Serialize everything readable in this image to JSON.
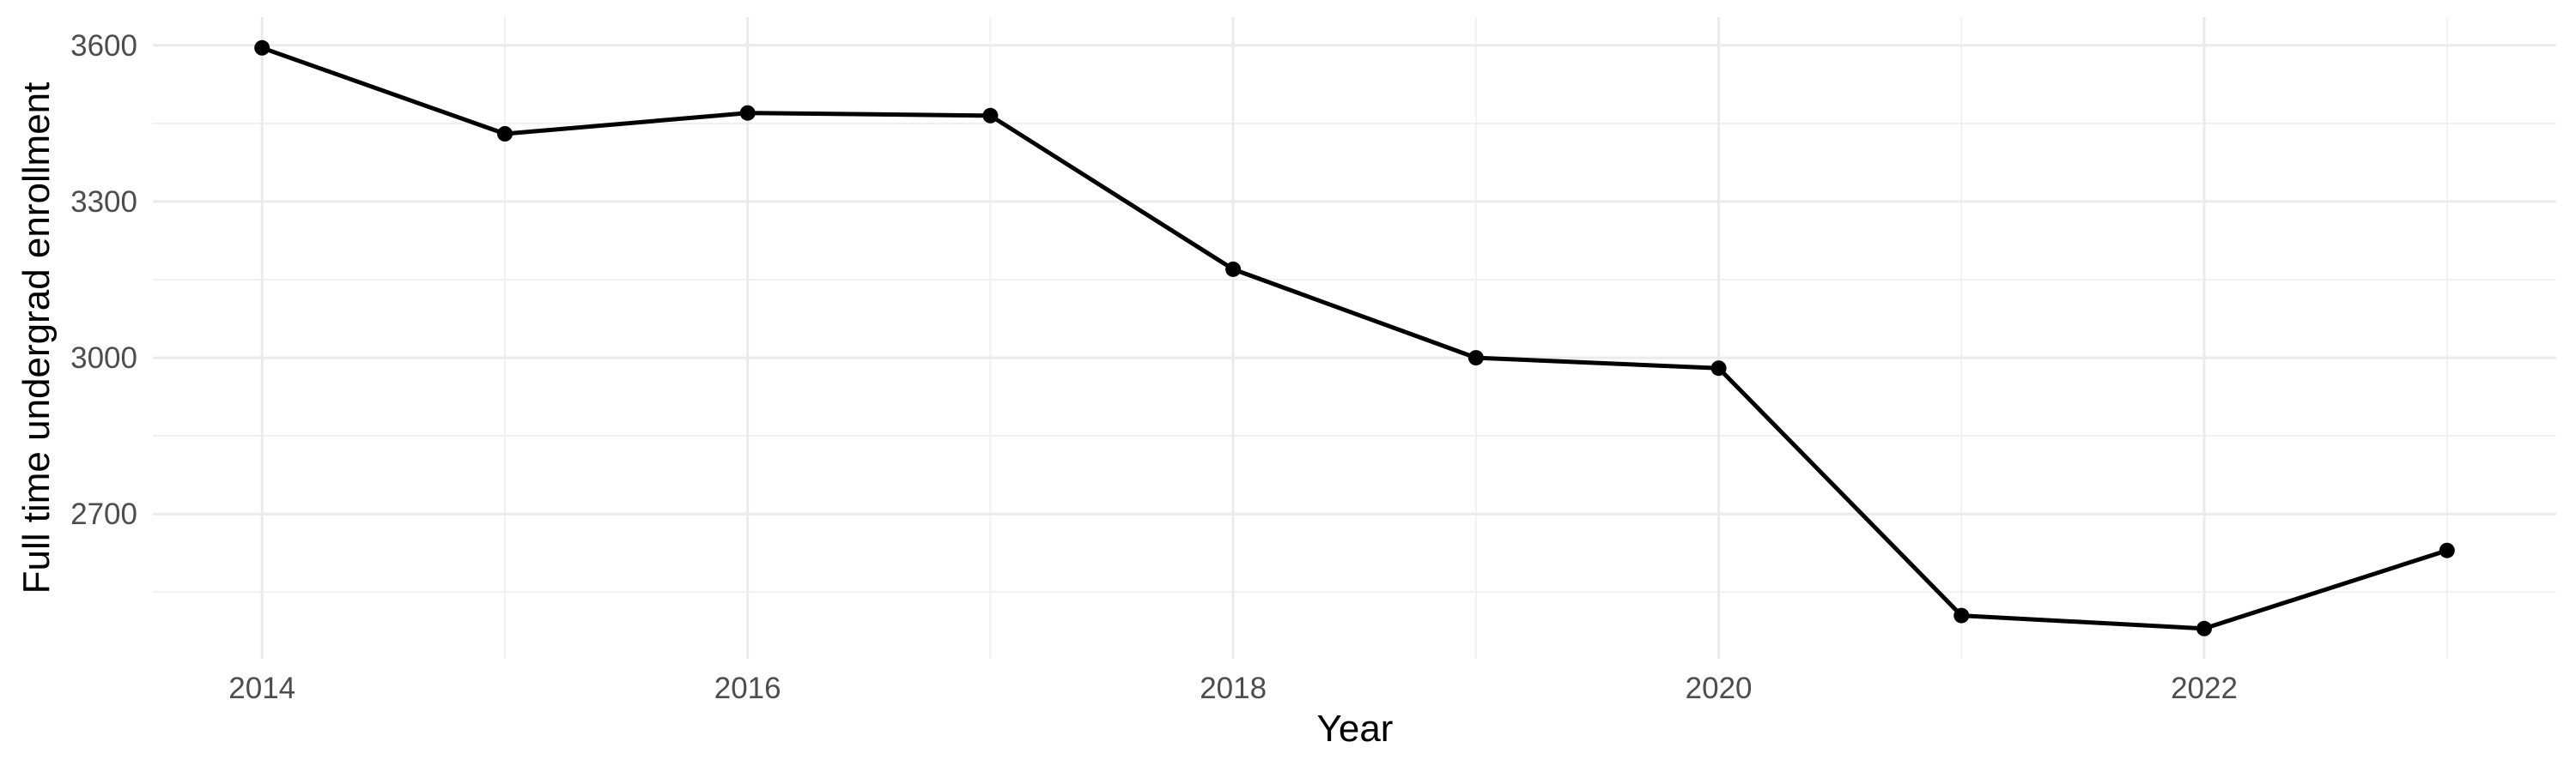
{
  "chart_data": {
    "type": "line",
    "title": "",
    "xlabel": "Year",
    "ylabel": "Full time undergrad enrollment",
    "x": [
      2014,
      2015,
      2016,
      2017,
      2018,
      2019,
      2020,
      2021,
      2022,
      2023
    ],
    "series": [
      {
        "name": "Full time undergrad enrollment",
        "values": [
          3595,
          3430,
          3470,
          3465,
          3170,
          3000,
          2980,
          2505,
          2480,
          2630
        ]
      }
    ],
    "x_major_ticks": [
      2014,
      2016,
      2018,
      2020,
      2022
    ],
    "x_tick_labels": [
      "2014",
      "2016",
      "2018",
      "2020",
      "2022"
    ],
    "x_minor_ticks": [
      2015,
      2017,
      2019,
      2021,
      2023
    ],
    "y_major_ticks": [
      3600,
      3300,
      3000,
      2700
    ],
    "y_tick_labels": [
      "3600",
      "3300",
      "3000",
      "2700"
    ],
    "y_minor_ticks": [
      3450,
      3150,
      2850,
      2550
    ],
    "xlim": [
      2013.55,
      2023.45
    ],
    "ylim": [
      2422,
      3654
    ],
    "grid": "on",
    "legend": "none",
    "marker": "point",
    "colors": {
      "line": "#000000",
      "point": "#000000",
      "grid_major": "#ebebeb",
      "grid_minor": "#efefef",
      "tick_label": "#4d4d4d",
      "axis_title": "#000000",
      "background": "#ffffff"
    }
  }
}
